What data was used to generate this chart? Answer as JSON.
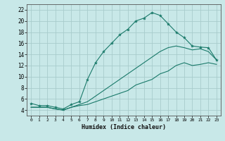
{
  "xlabel": "Humidex (Indice chaleur)",
  "xlim": [
    -0.5,
    23.5
  ],
  "ylim": [
    3.0,
    23.0
  ],
  "xticks": [
    0,
    1,
    2,
    3,
    4,
    5,
    6,
    7,
    8,
    9,
    10,
    11,
    12,
    13,
    14,
    15,
    16,
    17,
    18,
    19,
    20,
    21,
    22,
    23
  ],
  "yticks": [
    4,
    6,
    8,
    10,
    12,
    14,
    16,
    18,
    20,
    22
  ],
  "bg_color": "#c8e8e8",
  "grid_color": "#a8cccc",
  "line_color": "#1a7a6a",
  "line1_x": [
    0,
    1,
    2,
    3,
    4,
    5,
    6,
    7,
    8,
    9,
    10,
    11,
    12,
    13,
    14,
    15,
    16,
    17,
    18,
    19,
    20,
    21,
    22,
    23
  ],
  "line1_y": [
    5.2,
    4.8,
    4.8,
    4.5,
    4.2,
    5.0,
    5.5,
    9.5,
    12.5,
    14.5,
    16.0,
    17.5,
    18.5,
    20.0,
    20.5,
    21.5,
    21.0,
    19.5,
    18.0,
    17.0,
    15.5,
    15.3,
    15.2,
    13.0
  ],
  "line2_x": [
    0,
    1,
    2,
    3,
    4,
    5,
    6,
    7,
    8,
    9,
    10,
    11,
    12,
    13,
    14,
    15,
    16,
    17,
    18,
    19,
    20,
    21,
    22,
    23
  ],
  "line2_y": [
    4.5,
    4.5,
    4.5,
    4.2,
    4.0,
    4.5,
    5.0,
    5.5,
    6.5,
    7.5,
    8.5,
    9.5,
    10.5,
    11.5,
    12.5,
    13.5,
    14.5,
    15.2,
    15.5,
    15.2,
    14.8,
    15.0,
    14.5,
    13.0
  ],
  "line3_x": [
    0,
    1,
    2,
    3,
    4,
    5,
    6,
    7,
    8,
    9,
    10,
    11,
    12,
    13,
    14,
    15,
    16,
    17,
    18,
    19,
    20,
    21,
    22,
    23
  ],
  "line3_y": [
    4.5,
    4.5,
    4.5,
    4.2,
    4.0,
    4.5,
    4.8,
    5.0,
    5.5,
    6.0,
    6.5,
    7.0,
    7.5,
    8.5,
    9.0,
    9.5,
    10.5,
    11.0,
    12.0,
    12.5,
    12.0,
    12.2,
    12.5,
    12.2
  ]
}
